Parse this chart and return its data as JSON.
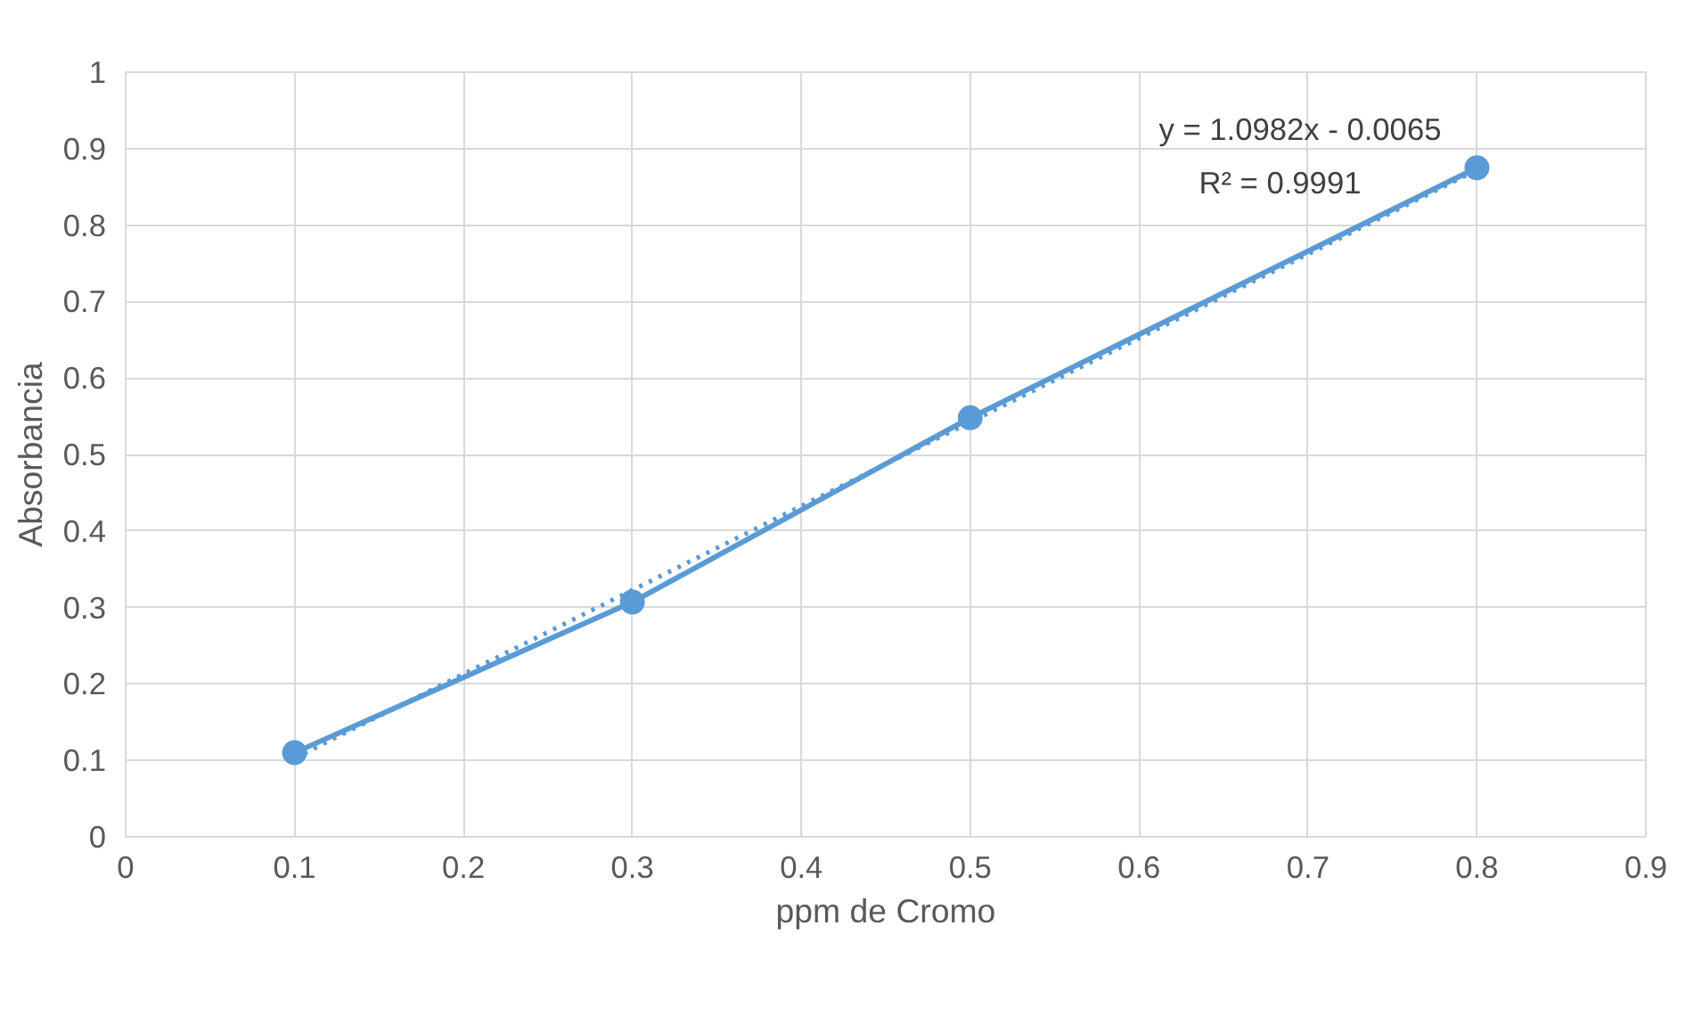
{
  "chart_data": {
    "type": "line",
    "xlabel": "ppm de Cromo",
    "ylabel": "Absorbancia",
    "xlim": [
      0,
      0.9
    ],
    "xticks": [
      0,
      0.1,
      0.2,
      0.3,
      0.4,
      0.5,
      0.6,
      0.7,
      0.8,
      0.9
    ],
    "ylim": [
      0,
      1
    ],
    "yticks": [
      0,
      0.1,
      0.2,
      0.3,
      0.4,
      0.5,
      0.6,
      0.7,
      0.8,
      0.9,
      1
    ],
    "grid": true,
    "series": [
      {
        "color": "#5b9bd5",
        "x": [
          0.1,
          0.3,
          0.5,
          0.8
        ],
        "values": [
          0.11,
          0.307,
          0.548,
          0.875
        ],
        "marker": "circle",
        "line_style": "solid"
      },
      {
        "color": "#5b9bd5",
        "x": [
          0.1,
          0.8
        ],
        "values": [
          0.103,
          0.872
        ],
        "marker": "none",
        "line_style": "dotted"
      }
    ],
    "annotations": [
      "y = 1.0982x - 0.0065",
      "R² = 0.9991"
    ]
  }
}
